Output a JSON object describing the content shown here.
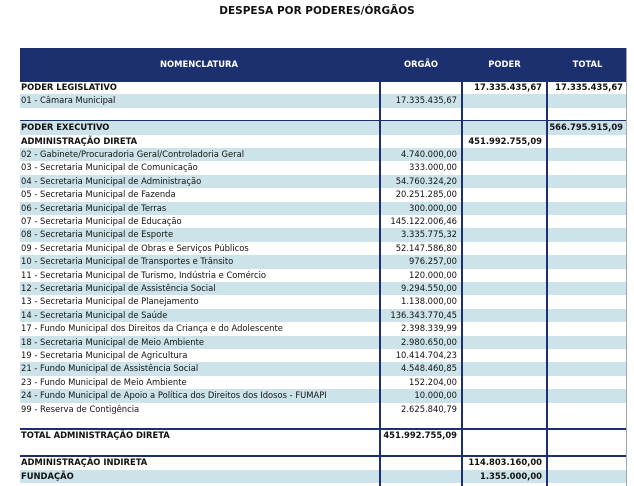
{
  "title": "DESPESA POR PODERES/ÓRGÃOS",
  "table": {
    "headers": [
      "NOMENCLATURA",
      "ORGÃO",
      "PODER",
      "TOTAL"
    ],
    "sections": [
      {
        "rows": [
          {
            "cells": [
              "PODER LEGISLATIVO",
              null,
              "17.335.435,67",
              "17.335.435,67"
            ],
            "bold": true
          },
          {
            "cells": [
              "01 - Câmara Municipal",
              "17.335.435,67",
              null,
              null
            ]
          }
        ]
      },
      {
        "rows": [
          {
            "cells": [
              "PODER EXECUTIVO",
              null,
              null,
              "566.795.915,09"
            ],
            "bold": true
          },
          {
            "cells": [
              "ADMINISTRAÇÃO DIRETA",
              null,
              "451.992.755,09",
              null
            ],
            "bold": true
          },
          {
            "cells": [
              "02 - Gabinete/Procuradoria Geral/Controladoria Geral",
              "4.740.000,00",
              null,
              null
            ]
          },
          {
            "cells": [
              "03 - Secretaria Municipal de Comunicação",
              "333.000,00",
              null,
              null
            ]
          },
          {
            "cells": [
              "04 - Secretaria Municipal de Administração",
              "54.760.324,20",
              null,
              null
            ]
          },
          {
            "cells": [
              "05 - Secretaria Municipal de Fazenda",
              "20.251.285,00",
              null,
              null
            ]
          },
          {
            "cells": [
              "06 - Secretaria Municipal de Terras",
              "300.000,00",
              null,
              null
            ]
          },
          {
            "cells": [
              "07 - Secretaria Municipal de Educação",
              "145.122.006,46",
              null,
              null
            ]
          },
          {
            "cells": [
              "08 - Secretaria Municipal de Esporte",
              "3.335.775,32",
              null,
              null
            ]
          },
          {
            "cells": [
              "09 - Secretaria Municipal de Obras e Serviços Públicos",
              "52.147.586,80",
              null,
              null
            ]
          },
          {
            "cells": [
              "10 - Secretaria Municipal de Transportes e Trânsito",
              "976.257,00",
              null,
              null
            ]
          },
          {
            "cells": [
              "11 - Secretaria Municipal de Turismo, Indústria e Comércio",
              "120.000,00",
              null,
              null
            ]
          },
          {
            "cells": [
              "12 - Secretaria Municipal de Assistência Social",
              "9.294.550,00",
              null,
              null
            ]
          },
          {
            "cells": [
              "13 - Secretaria Municipal de Planejamento",
              "1.138.000,00",
              null,
              null
            ]
          },
          {
            "cells": [
              "14 - Secretaria Municipal de Saúde",
              "136.343.770,45",
              null,
              null
            ]
          },
          {
            "cells": [
              "17 - Fundo Municipal dos Direitos da Criança e do Adolescente",
              "2.398.339,99",
              null,
              null
            ]
          },
          {
            "cells": [
              "18 - Secretaria Municipal de Meio Ambiente",
              "2.980.650,00",
              null,
              null
            ]
          },
          {
            "cells": [
              "19 - Secretaria Municipal de Agricultura",
              "10.414.704,23",
              null,
              null
            ]
          },
          {
            "cells": [
              "21 - Fundo Municipal de Assistência Social",
              "4.548.460,85",
              null,
              null
            ]
          },
          {
            "cells": [
              "23 - Fundo Municipal de Meio Ambiente",
              "152.204,00",
              null,
              null
            ]
          },
          {
            "cells": [
              "24 - Fundo Municipal de Apoio a Política dos Direitos dos Idosos - FUMAPI",
              "10.000,00",
              null,
              null
            ]
          },
          {
            "cells": [
              "99 - Reserva de Contigência",
              "2.625.840,79",
              null,
              null
            ]
          }
        ]
      },
      {
        "rows": [
          {
            "cells": [
              "TOTAL ADMINISTRAÇÃO DIRETA",
              "451.992.755,09",
              null,
              null
            ],
            "bold": true
          }
        ]
      },
      {
        "rows": [
          {
            "cells": [
              "ADMINISTRAÇÃO INDIRETA",
              null,
              "114.803.160,00",
              null
            ],
            "bold": true
          },
          {
            "cells": [
              "FUNDAÇÃO",
              null,
              "1.355.000,00",
              null
            ],
            "bold": true
          }
        ]
      }
    ]
  }
}
